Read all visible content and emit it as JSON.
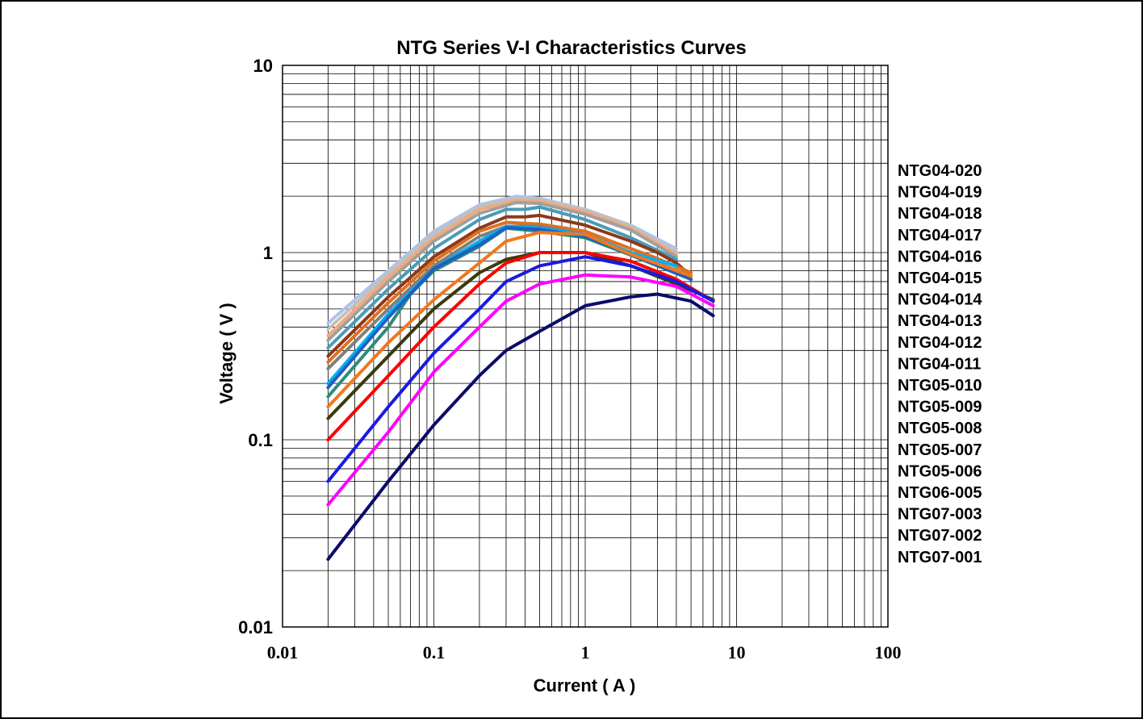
{
  "chart_data": {
    "type": "line",
    "title": "NTG  Series  V-I  Characteristics  Curves",
    "xlabel": "Current ( A )",
    "ylabel": "Voltage ( V )",
    "xscale": "log",
    "yscale": "log",
    "xlim": [
      0.01,
      100
    ],
    "ylim": [
      0.01,
      10
    ],
    "xticks": [
      "0.01",
      "0.1",
      "1",
      "10",
      "100"
    ],
    "yticks": [
      "0.01",
      "0.1",
      "1",
      "10"
    ],
    "grid": true,
    "legend_position": "right",
    "series": [
      {
        "name": "NTG04-020",
        "color": "#AFC3E6",
        "x": [
          0.02,
          0.05,
          0.1,
          0.2,
          0.35,
          0.5,
          1,
          2,
          4
        ],
        "y": [
          0.42,
          0.8,
          1.3,
          1.8,
          2.0,
          1.95,
          1.7,
          1.4,
          1.05
        ]
      },
      {
        "name": "NTG04-019",
        "color": "#C0C0C0",
        "x": [
          0.02,
          0.05,
          0.1,
          0.2,
          0.35,
          0.5,
          1,
          2,
          4
        ],
        "y": [
          0.39,
          0.77,
          1.25,
          1.75,
          1.95,
          1.92,
          1.68,
          1.38,
          1.0
        ]
      },
      {
        "name": "NTG04-018",
        "color": "#F2A97A",
        "x": [
          0.02,
          0.05,
          0.1,
          0.2,
          0.35,
          0.5,
          1,
          2,
          4
        ],
        "y": [
          0.36,
          0.74,
          1.2,
          1.7,
          1.9,
          1.88,
          1.65,
          1.35,
          0.98
        ]
      },
      {
        "name": "NTG04-017",
        "color": "#A0A0A0",
        "x": [
          0.02,
          0.05,
          0.1,
          0.2,
          0.35,
          0.5,
          1,
          2,
          4
        ],
        "y": [
          0.34,
          0.7,
          1.15,
          1.62,
          1.85,
          1.83,
          1.6,
          1.32,
          0.95
        ]
      },
      {
        "name": "NTG04-016",
        "color": "#4A9BB5",
        "x": [
          0.02,
          0.05,
          0.1,
          0.2,
          0.3,
          0.4,
          0.5,
          1,
          2,
          4
        ],
        "y": [
          0.31,
          0.64,
          1.05,
          1.5,
          1.7,
          1.7,
          1.75,
          1.5,
          1.2,
          0.92
        ]
      },
      {
        "name": "NTG04-015",
        "color": "#8B3A1A",
        "x": [
          0.02,
          0.05,
          0.1,
          0.2,
          0.3,
          0.4,
          0.5,
          1,
          2,
          3,
          4,
          5
        ],
        "y": [
          0.28,
          0.58,
          0.95,
          1.35,
          1.55,
          1.55,
          1.58,
          1.4,
          1.15,
          1.0,
          0.88,
          0.75
        ]
      },
      {
        "name": "NTG04-014",
        "color": "#E07020",
        "x": [
          0.02,
          0.05,
          0.1,
          0.2,
          0.3,
          0.5,
          1,
          2,
          3,
          5
        ],
        "y": [
          0.26,
          0.54,
          0.9,
          1.3,
          1.45,
          1.42,
          1.3,
          1.05,
          0.93,
          0.78
        ]
      },
      {
        "name": "NTG04-013",
        "color": "#7F7F7F",
        "x": [
          0.02,
          0.05,
          0.1,
          0.2,
          0.3,
          0.5,
          1,
          2,
          3,
          5
        ],
        "y": [
          0.24,
          0.5,
          0.85,
          1.22,
          1.38,
          1.38,
          1.25,
          1.0,
          0.88,
          0.75
        ]
      },
      {
        "name": "NTG04-012",
        "color": "#00B0F0",
        "x": [
          0.02,
          0.05,
          0.1,
          0.2,
          0.3,
          0.5,
          1,
          2,
          4
        ],
        "y": [
          0.2,
          0.47,
          0.82,
          1.15,
          1.38,
          1.35,
          1.25,
          1.0,
          0.85
        ]
      },
      {
        "name": "NTG04-011",
        "color": "#2E8B7A",
        "x": [
          0.02,
          0.05,
          0.07,
          0.1,
          0.2,
          0.3,
          0.5,
          1,
          2,
          5
        ],
        "y": [
          0.17,
          0.4,
          0.6,
          0.8,
          1.08,
          1.35,
          1.3,
          1.2,
          0.97,
          0.72
        ]
      },
      {
        "name": "NTG05-010",
        "color": "#1F5FBF",
        "x": [
          0.02,
          0.05,
          0.1,
          0.2,
          0.3,
          0.5,
          1,
          2,
          5
        ],
        "y": [
          0.19,
          0.45,
          0.82,
          1.1,
          1.36,
          1.33,
          1.22,
          0.98,
          0.72
        ]
      },
      {
        "name": "NTG05-009",
        "color": "#F07820",
        "x": [
          0.02,
          0.05,
          0.1,
          0.2,
          0.3,
          0.5,
          1,
          2,
          5
        ],
        "y": [
          0.15,
          0.33,
          0.56,
          0.88,
          1.15,
          1.28,
          1.25,
          0.98,
          0.75
        ]
      },
      {
        "name": "NTG05-008",
        "color": "#3A3A10",
        "x": [
          0.02,
          0.05,
          0.1,
          0.2,
          0.3,
          0.5,
          1,
          2,
          4,
          7
        ],
        "y": [
          0.13,
          0.28,
          0.5,
          0.78,
          0.92,
          1.0,
          1.0,
          0.85,
          0.68,
          0.56
        ]
      },
      {
        "name": "NTG05-007",
        "color": "#FF0000",
        "x": [
          0.02,
          0.05,
          0.1,
          0.2,
          0.3,
          0.5,
          1,
          2,
          4,
          7
        ],
        "y": [
          0.1,
          0.22,
          0.4,
          0.68,
          0.88,
          1.0,
          1.0,
          0.9,
          0.72,
          0.55
        ]
      },
      {
        "name": "NTG05-006",
        "color": "#1A1AE0",
        "x": [
          0.02,
          0.05,
          0.1,
          0.2,
          0.3,
          0.5,
          1,
          2,
          4,
          7
        ],
        "y": [
          0.06,
          0.15,
          0.29,
          0.5,
          0.7,
          0.85,
          0.95,
          0.85,
          0.7,
          0.55
        ]
      },
      {
        "name": "NTG06-005",
        "color": "#FF00FF",
        "x": [
          0.02,
          0.05,
          0.1,
          0.2,
          0.3,
          0.5,
          1,
          2,
          4,
          7
        ],
        "y": [
          0.045,
          0.11,
          0.23,
          0.4,
          0.55,
          0.68,
          0.76,
          0.74,
          0.66,
          0.52
        ]
      },
      {
        "name": "NTG07-003",
        "color": "#0B0B6B",
        "x": [
          0.02,
          0.05,
          0.1,
          0.2,
          0.3,
          0.5,
          1,
          2,
          3,
          5,
          7
        ],
        "y": [
          0.023,
          0.06,
          0.12,
          0.22,
          0.3,
          0.38,
          0.52,
          0.58,
          0.6,
          0.55,
          0.46
        ]
      },
      {
        "name": "NTG07-002",
        "color": "#0B0B6B",
        "x": [],
        "y": []
      },
      {
        "name": "NTG07-001",
        "color": "#0B0B6B",
        "x": [],
        "y": []
      }
    ]
  }
}
